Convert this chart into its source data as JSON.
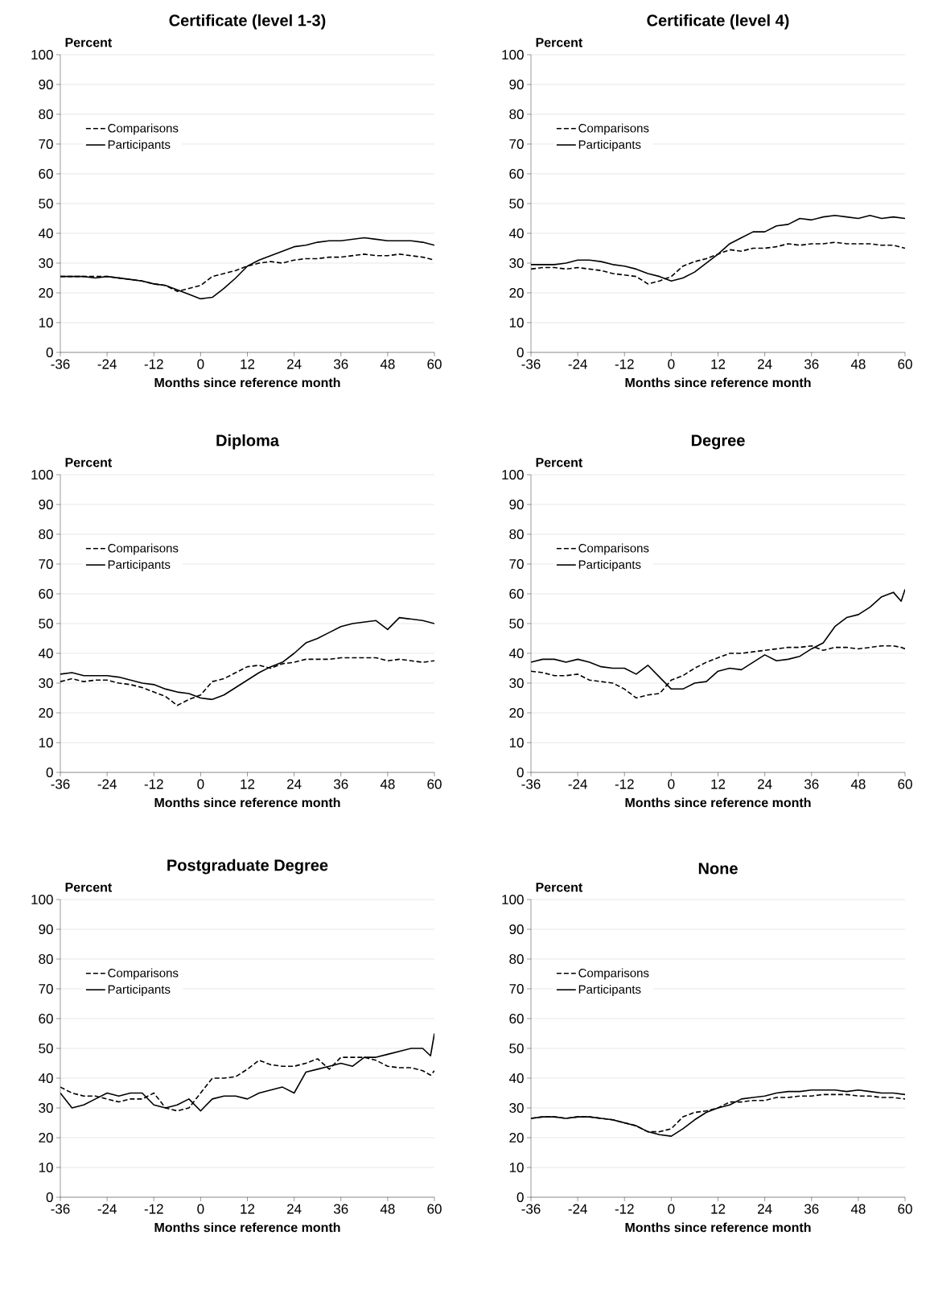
{
  "chart_data": [
    {
      "type": "line",
      "title": "Certificate (level 1-3)",
      "xlabel": "Months since reference month",
      "ylabel": "Percent",
      "x": [
        -36,
        -33,
        -30,
        -27,
        -24,
        -21,
        -18,
        -15,
        -12,
        -9,
        -6,
        -3,
        0,
        3,
        6,
        9,
        12,
        15,
        18,
        21,
        24,
        27,
        30,
        33,
        36,
        39,
        42,
        45,
        48,
        51,
        54,
        57,
        60
      ],
      "xlim": [
        -36,
        60
      ],
      "xticks": [
        -36,
        -24,
        -12,
        0,
        12,
        24,
        36,
        48,
        60
      ],
      "ylim": [
        0,
        100
      ],
      "yticks": [
        0,
        10,
        20,
        30,
        40,
        50,
        60,
        70,
        80,
        90,
        100
      ],
      "grid": "y",
      "legend": "left",
      "series": [
        {
          "name": "Comparisons",
          "color": "#000000",
          "line_style": "dashed",
          "values": [
            25.5,
            25.5,
            25.5,
            25.5,
            25.5,
            25,
            24.5,
            24,
            23,
            22.5,
            20.5,
            21.5,
            22.5,
            25.5,
            26.5,
            27.5,
            29,
            30,
            30.5,
            30,
            31,
            31.5,
            31.5,
            32,
            32,
            32.5,
            33,
            32.5,
            32.5,
            33,
            32.5,
            32,
            31
          ]
        },
        {
          "name": "Participants",
          "color": "#000000",
          "line_style": "solid",
          "values": [
            25.5,
            25.5,
            25.5,
            25,
            25.5,
            25,
            24.5,
            24,
            23,
            22.5,
            21,
            19.5,
            18,
            18.5,
            21.5,
            25,
            29,
            31,
            32.5,
            34,
            35.5,
            36,
            37,
            37.5,
            37.5,
            38,
            38.5,
            38,
            37.5,
            37.5,
            37.5,
            37,
            36
          ]
        }
      ]
    },
    {
      "type": "line",
      "title": "Certificate (level 4)",
      "xlabel": "Months since reference  month",
      "ylabel": "Percent",
      "x": [
        -36,
        -33,
        -30,
        -27,
        -24,
        -21,
        -18,
        -15,
        -12,
        -9,
        -6,
        -3,
        0,
        3,
        6,
        9,
        12,
        15,
        18,
        21,
        24,
        27,
        30,
        33,
        36,
        39,
        42,
        45,
        48,
        51,
        54,
        57,
        60
      ],
      "xlim": [
        -36,
        60
      ],
      "xticks": [
        -36,
        -24,
        -12,
        0,
        12,
        24,
        36,
        48,
        60
      ],
      "ylim": [
        0,
        100
      ],
      "yticks": [
        0,
        10,
        20,
        30,
        40,
        50,
        60,
        70,
        80,
        90,
        100
      ],
      "grid": "y",
      "legend": "left",
      "series": [
        {
          "name": "Comparisons",
          "color": "#000000",
          "line_style": "dashed",
          "values": [
            28,
            28.5,
            28.5,
            28,
            28.5,
            28,
            27.5,
            26.5,
            26,
            25.5,
            23,
            24,
            25.5,
            29,
            30.5,
            31.5,
            33,
            34.5,
            34,
            35,
            35,
            35.5,
            36.5,
            36,
            36.5,
            36.5,
            37,
            36.5,
            36.5,
            36.5,
            36,
            36,
            35
          ]
        },
        {
          "name": "Participants",
          "color": "#000000",
          "line_style": "solid",
          "values": [
            29.5,
            29.5,
            29.5,
            30,
            31,
            31,
            30.5,
            29.5,
            29,
            28,
            26.5,
            25.5,
            24,
            25,
            27,
            30,
            33,
            36.5,
            38.5,
            40.5,
            40.5,
            42.5,
            43,
            45,
            44.5,
            45.5,
            46,
            45.5,
            45,
            46,
            45,
            45.5,
            45
          ]
        }
      ]
    },
    {
      "type": "line",
      "title": "Diploma",
      "xlabel": "Months since reference month",
      "ylabel": "Percent",
      "x": [
        -36,
        -33,
        -30,
        -27,
        -24,
        -21,
        -18,
        -15,
        -12,
        -9,
        -6,
        -3,
        0,
        3,
        6,
        9,
        12,
        15,
        18,
        21,
        24,
        27,
        30,
        33,
        36,
        39,
        42,
        45,
        48,
        51,
        54,
        57,
        60
      ],
      "xlim": [
        -36,
        60
      ],
      "xticks": [
        -36,
        -24,
        -12,
        0,
        12,
        24,
        36,
        48,
        60
      ],
      "ylim": [
        0,
        100
      ],
      "yticks": [
        0,
        10,
        20,
        30,
        40,
        50,
        60,
        70,
        80,
        90,
        100
      ],
      "grid": "y",
      "legend": "left",
      "series": [
        {
          "name": "Comparisons",
          "color": "#000000",
          "line_style": "dashed",
          "values": [
            30.5,
            31.5,
            30.5,
            31,
            31,
            30,
            29.5,
            28.5,
            27,
            25.5,
            22.5,
            24.5,
            26,
            30.5,
            31.5,
            33.5,
            35.5,
            36,
            35,
            36.5,
            37,
            38,
            38,
            38,
            38.5,
            38.5,
            38.5,
            38.5,
            37.5,
            38,
            37.5,
            37,
            37.5
          ]
        },
        {
          "name": "Participants",
          "color": "#000000",
          "line_style": "solid",
          "values": [
            33,
            33.5,
            32.5,
            32.5,
            32.5,
            32,
            31,
            30,
            29.5,
            28,
            27,
            26.5,
            25,
            24.5,
            26,
            28.5,
            31,
            33.5,
            35.5,
            37,
            40,
            43.5,
            45,
            47,
            49,
            50,
            50.5,
            51,
            48,
            52,
            51.5,
            51,
            50
          ]
        }
      ]
    },
    {
      "type": "line",
      "title": "Degree",
      "xlabel": "Months since reference month",
      "ylabel": "Percent",
      "x": [
        -36,
        -33,
        -30,
        -27,
        -24,
        -21,
        -18,
        -15,
        -12,
        -9,
        -6,
        -3,
        0,
        3,
        6,
        9,
        12,
        15,
        18,
        21,
        24,
        27,
        30,
        33,
        36,
        39,
        42,
        45,
        48,
        51,
        54,
        57,
        59,
        60
      ],
      "xlim": [
        -36,
        60
      ],
      "xticks": [
        -36,
        -24,
        -12,
        0,
        12,
        24,
        36,
        48,
        60
      ],
      "ylim": [
        0,
        100
      ],
      "yticks": [
        0,
        10,
        20,
        30,
        40,
        50,
        60,
        70,
        80,
        90,
        100
      ],
      "grid": "y",
      "legend": "left",
      "series": [
        {
          "name": "Comparisons",
          "color": "#000000",
          "line_style": "dashed",
          "values": [
            34,
            33.5,
            32.5,
            32.5,
            33,
            31,
            30.5,
            30,
            28,
            25,
            26,
            26.5,
            31,
            32.5,
            35,
            37,
            38.5,
            40,
            40,
            40.5,
            41,
            41.5,
            42,
            42,
            42.5,
            41,
            42,
            42,
            41.5,
            42,
            42.5,
            42.5,
            42,
            41.5
          ]
        },
        {
          "name": "Participants",
          "color": "#000000",
          "line_style": "solid",
          "values": [
            37,
            38,
            38,
            37,
            38,
            37,
            35.5,
            35,
            35,
            33,
            36,
            32,
            28,
            28,
            30,
            30.5,
            34,
            35,
            34.5,
            37,
            39.5,
            37.5,
            38,
            39,
            41.5,
            43.5,
            49,
            52,
            53,
            55.5,
            59,
            60.5,
            57.5,
            61.5
          ]
        }
      ]
    },
    {
      "type": "line",
      "title": "Postgraduate Degree",
      "xlabel": "Months since reference month",
      "ylabel": "Percent",
      "x": [
        -36,
        -33,
        -30,
        -27,
        -24,
        -21,
        -18,
        -15,
        -12,
        -9,
        -6,
        -3,
        0,
        3,
        6,
        9,
        12,
        15,
        18,
        21,
        24,
        27,
        30,
        33,
        36,
        39,
        42,
        45,
        48,
        51,
        54,
        57,
        59,
        60
      ],
      "xlim": [
        -36,
        60
      ],
      "xticks": [
        -36,
        -24,
        -12,
        0,
        12,
        24,
        36,
        48,
        60
      ],
      "ylim": [
        0,
        100
      ],
      "yticks": [
        0,
        10,
        20,
        30,
        40,
        50,
        60,
        70,
        80,
        90,
        100
      ],
      "grid": "y",
      "legend": "left",
      "series": [
        {
          "name": "Comparisons",
          "color": "#000000",
          "line_style": "dashed",
          "values": [
            37,
            35,
            34,
            34,
            33,
            32,
            33,
            33,
            35,
            30,
            29,
            30,
            35,
            40,
            40,
            40.5,
            43,
            46,
            44.5,
            44,
            44,
            45,
            46.5,
            43,
            47,
            47,
            47,
            46,
            44,
            43.5,
            43.5,
            42.5,
            41,
            42.5
          ]
        },
        {
          "name": "Participants",
          "color": "#000000",
          "line_style": "solid",
          "values": [
            35,
            30,
            31,
            33,
            35,
            34,
            35,
            35,
            31,
            30,
            31,
            33,
            29,
            33,
            34,
            34,
            33,
            35,
            36,
            37,
            35,
            42,
            43,
            44,
            45,
            44,
            47,
            47,
            48,
            49,
            50,
            50,
            47.5,
            55
          ]
        }
      ]
    },
    {
      "type": "line",
      "title": "None",
      "xlabel": "Months since reference month",
      "ylabel": "Percent",
      "x": [
        -36,
        -33,
        -30,
        -27,
        -24,
        -21,
        -18,
        -15,
        -12,
        -9,
        -6,
        -3,
        0,
        3,
        6,
        9,
        12,
        15,
        18,
        21,
        24,
        27,
        30,
        33,
        36,
        39,
        42,
        45,
        48,
        51,
        54,
        57,
        60
      ],
      "xlim": [
        -36,
        60
      ],
      "xticks": [
        -36,
        -24,
        -12,
        0,
        12,
        24,
        36,
        48,
        60
      ],
      "ylim": [
        0,
        100
      ],
      "yticks": [
        0,
        10,
        20,
        30,
        40,
        50,
        60,
        70,
        80,
        90,
        100
      ],
      "grid": "y",
      "legend": "left",
      "series": [
        {
          "name": "Comparisons",
          "color": "#000000",
          "line_style": "dashed",
          "values": [
            26.5,
            27,
            27,
            26.5,
            27,
            27,
            26.5,
            26,
            25,
            24,
            22,
            22,
            23,
            27,
            28.5,
            29,
            30,
            32,
            32,
            32.5,
            32.5,
            33.5,
            33.5,
            34,
            34,
            34.5,
            34.5,
            34.5,
            34,
            34,
            33.5,
            33.5,
            33
          ]
        },
        {
          "name": "Participants",
          "color": "#000000",
          "line_style": "solid",
          "values": [
            26.5,
            27,
            27,
            26.5,
            27,
            27,
            26.5,
            26,
            25,
            24,
            22,
            21,
            20.5,
            23,
            26,
            28.5,
            30,
            31,
            33,
            33.5,
            34,
            35,
            35.5,
            35.5,
            36,
            36,
            36,
            35.5,
            36,
            35.5,
            35,
            35,
            34.5
          ]
        }
      ]
    }
  ]
}
